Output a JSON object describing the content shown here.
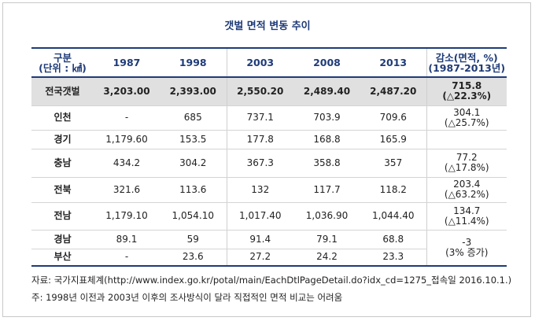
{
  "title": "갯벌 면적 변동 추이",
  "header": {
    "category_line1": "구분",
    "category_line2": "(단위 : ㎢)",
    "years": [
      "1987",
      "1998",
      "2003",
      "2008",
      "2013"
    ],
    "change_line1": "감소(면적, %)",
    "change_line2": "(1987-2013년)"
  },
  "rows": [
    {
      "region": "전국갯벌",
      "v1987": "3,203.00",
      "v1998": "2,393.00",
      "v2003": "2,550.20",
      "v2008": "2,489.40",
      "v2013": "2,487.20",
      "change_line1": "715.8",
      "change_line2": "(△22.3%)"
    },
    {
      "region": "인천",
      "v1987": "-",
      "v1998": "685",
      "v2003": "737.1",
      "v2008": "703.9",
      "v2013": "709.6",
      "change_line1": "304.1",
      "change_line2": "(△25.7%)"
    },
    {
      "region": "경기",
      "v1987": "1,179.60",
      "v1998": "153.5",
      "v2003": "177.8",
      "v2008": "168.8",
      "v2013": "165.9",
      "change_line1": "",
      "change_line2": ""
    },
    {
      "region": "충남",
      "v1987": "434.2",
      "v1998": "304.2",
      "v2003": "367.3",
      "v2008": "358.8",
      "v2013": "357",
      "change_line1": "77.2",
      "change_line2": "(△17.8%)"
    },
    {
      "region": "전북",
      "v1987": "321.6",
      "v1998": "113.6",
      "v2003": "132",
      "v2008": "117.7",
      "v2013": "118.2",
      "change_line1": "203.4",
      "change_line2": "(△63.2%)"
    },
    {
      "region": "전남",
      "v1987": "1,179.10",
      "v1998": "1,054.10",
      "v2003": "1,017.40",
      "v2008": "1,036.90",
      "v2013": "1,044.40",
      "change_line1": "134.7",
      "change_line2": "(△11.4%)"
    },
    {
      "region": "경남",
      "v1987": "89.1",
      "v1998": "59",
      "v2003": "91.4",
      "v2008": "79.1",
      "v2013": "68.8"
    },
    {
      "region": "부산",
      "v1987": "-",
      "v1998": "23.6",
      "v2003": "27.2",
      "v2008": "24.2",
      "v2013": "23.3"
    }
  ],
  "merged_change": {
    "line1": "-3",
    "line2": "(3% 증가)"
  },
  "source": "자료: 국가지표체계(http://www.index.go.kr/potal/main/EachDtlPageDetail.do?idx_cd=1275_접속일 2016.10.1.)",
  "footnote": "주: 1998년 이전과 2003년 이후의 조사방식이 달라 직접적인 면적 비교는 어려움"
}
